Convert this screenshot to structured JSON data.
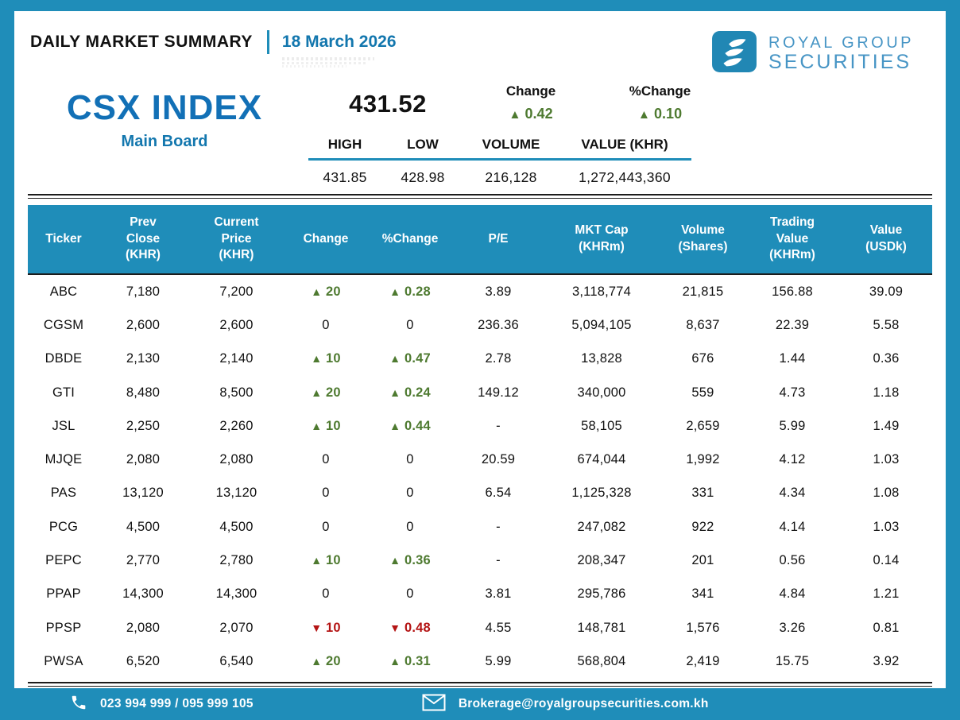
{
  "header": {
    "title": "DAILY MARKET SUMMARY",
    "date": "18 March 2026",
    "brand_line1": "ROYAL GROUP",
    "brand_line2": "SECURITIES"
  },
  "index": {
    "name": "CSX INDEX",
    "board": "Main Board",
    "value": "431.52",
    "change_label": "Change",
    "pct_change_label": "%Change",
    "change": {
      "dir": "up",
      "text": "0.42"
    },
    "pct_change": {
      "dir": "up",
      "text": "0.10"
    },
    "stats": {
      "headers": [
        "HIGH",
        "LOW",
        "VOLUME",
        "VALUE (KHR)"
      ],
      "values": [
        "431.85",
        "428.98",
        "216,128",
        "1,272,443,360"
      ]
    }
  },
  "table": {
    "columns": [
      [
        "Ticker"
      ],
      [
        "Prev",
        "Close",
        "(KHR)"
      ],
      [
        "Current",
        "Price",
        "(KHR)"
      ],
      [
        "Change"
      ],
      [
        "%Change"
      ],
      [
        "P/E"
      ],
      [
        "MKT Cap",
        "(KHRm)"
      ],
      [
        "Volume",
        "(Shares)"
      ],
      [
        "Trading",
        "Value",
        "(KHRm)"
      ],
      [
        "Value",
        "(USDk)"
      ]
    ],
    "rows": [
      {
        "ticker": "ABC",
        "prev": "7,180",
        "curr": "7,200",
        "chg": {
          "dir": "up",
          "text": "20"
        },
        "pct": {
          "dir": "up",
          "text": "0.28"
        },
        "pe": "3.89",
        "mktcap": "3,118,774",
        "vol": "21,815",
        "tval": "156.88",
        "usd": "39.09"
      },
      {
        "ticker": "CGSM",
        "prev": "2,600",
        "curr": "2,600",
        "chg": {
          "dir": "flat",
          "text": "0"
        },
        "pct": {
          "dir": "flat",
          "text": "0"
        },
        "pe": "236.36",
        "mktcap": "5,094,105",
        "vol": "8,637",
        "tval": "22.39",
        "usd": "5.58"
      },
      {
        "ticker": "DBDE",
        "prev": "2,130",
        "curr": "2,140",
        "chg": {
          "dir": "up",
          "text": "10"
        },
        "pct": {
          "dir": "up",
          "text": "0.47"
        },
        "pe": "2.78",
        "mktcap": "13,828",
        "vol": "676",
        "tval": "1.44",
        "usd": "0.36"
      },
      {
        "ticker": "GTI",
        "prev": "8,480",
        "curr": "8,500",
        "chg": {
          "dir": "up",
          "text": "20"
        },
        "pct": {
          "dir": "up",
          "text": "0.24"
        },
        "pe": "149.12",
        "mktcap": "340,000",
        "vol": "559",
        "tval": "4.73",
        "usd": "1.18"
      },
      {
        "ticker": "JSL",
        "prev": "2,250",
        "curr": "2,260",
        "chg": {
          "dir": "up",
          "text": "10"
        },
        "pct": {
          "dir": "up",
          "text": "0.44"
        },
        "pe": "-",
        "mktcap": "58,105",
        "vol": "2,659",
        "tval": "5.99",
        "usd": "1.49"
      },
      {
        "ticker": "MJQE",
        "prev": "2,080",
        "curr": "2,080",
        "chg": {
          "dir": "flat",
          "text": "0"
        },
        "pct": {
          "dir": "flat",
          "text": "0"
        },
        "pe": "20.59",
        "mktcap": "674,044",
        "vol": "1,992",
        "tval": "4.12",
        "usd": "1.03"
      },
      {
        "ticker": "PAS",
        "prev": "13,120",
        "curr": "13,120",
        "chg": {
          "dir": "flat",
          "text": "0"
        },
        "pct": {
          "dir": "flat",
          "text": "0"
        },
        "pe": "6.54",
        "mktcap": "1,125,328",
        "vol": "331",
        "tval": "4.34",
        "usd": "1.08"
      },
      {
        "ticker": "PCG",
        "prev": "4,500",
        "curr": "4,500",
        "chg": {
          "dir": "flat",
          "text": "0"
        },
        "pct": {
          "dir": "flat",
          "text": "0"
        },
        "pe": "-",
        "mktcap": "247,082",
        "vol": "922",
        "tval": "4.14",
        "usd": "1.03"
      },
      {
        "ticker": "PEPC",
        "prev": "2,770",
        "curr": "2,780",
        "chg": {
          "dir": "up",
          "text": "10"
        },
        "pct": {
          "dir": "up",
          "text": "0.36"
        },
        "pe": "-",
        "mktcap": "208,347",
        "vol": "201",
        "tval": "0.56",
        "usd": "0.14"
      },
      {
        "ticker": "PPAP",
        "prev": "14,300",
        "curr": "14,300",
        "chg": {
          "dir": "flat",
          "text": "0"
        },
        "pct": {
          "dir": "flat",
          "text": "0"
        },
        "pe": "3.81",
        "mktcap": "295,786",
        "vol": "341",
        "tval": "4.84",
        "usd": "1.21"
      },
      {
        "ticker": "PPSP",
        "prev": "2,080",
        "curr": "2,070",
        "chg": {
          "dir": "down",
          "text": "10"
        },
        "pct": {
          "dir": "down",
          "text": "0.48"
        },
        "pe": "4.55",
        "mktcap": "148,781",
        "vol": "1,576",
        "tval": "3.26",
        "usd": "0.81"
      },
      {
        "ticker": "PWSA",
        "prev": "6,520",
        "curr": "6,540",
        "chg": {
          "dir": "up",
          "text": "20"
        },
        "pct": {
          "dir": "up",
          "text": "0.31"
        },
        "pe": "5.99",
        "mktcap": "568,804",
        "vol": "2,419",
        "tval": "15.75",
        "usd": "3.92"
      }
    ]
  },
  "footer": {
    "phone": "023 994 999 / 095 999 105",
    "email": "Brokerage@royalgroupsecurities.com.kh"
  },
  "icons": {
    "up_arrow": "▲",
    "down_arrow": "▼",
    "phone": "phone-icon",
    "email": "envelope-icon",
    "logo": "royal-group-securities-logo"
  },
  "colors": {
    "brand_blue": "#1f8db9",
    "text_blue": "#1377ae",
    "index_blue": "#1270b6",
    "up_green": "#4e7a30",
    "down_red": "#b41414"
  }
}
